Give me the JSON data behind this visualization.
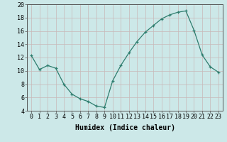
{
  "x": [
    0,
    1,
    2,
    3,
    4,
    5,
    6,
    7,
    8,
    9,
    10,
    11,
    12,
    13,
    14,
    15,
    16,
    17,
    18,
    19,
    20,
    21,
    22,
    23
  ],
  "y": [
    12.3,
    10.2,
    10.8,
    10.4,
    8.0,
    6.5,
    5.8,
    5.4,
    4.7,
    4.5,
    8.5,
    10.8,
    12.7,
    14.4,
    15.8,
    16.8,
    17.8,
    18.4,
    18.8,
    19.0,
    16.1,
    12.4,
    10.6,
    9.8
  ],
  "xlabel": "Humidex (Indice chaleur)",
  "ylim": [
    4,
    20
  ],
  "yticks": [
    4,
    6,
    8,
    10,
    12,
    14,
    16,
    18,
    20
  ],
  "xlim": [
    -0.5,
    23.5
  ],
  "xticks": [
    0,
    1,
    2,
    3,
    4,
    5,
    6,
    7,
    8,
    9,
    10,
    11,
    12,
    13,
    14,
    15,
    16,
    17,
    18,
    19,
    20,
    21,
    22,
    23
  ],
  "line_color": "#2e7d6e",
  "marker": "+",
  "bg_color": "#cce8e8",
  "grid_color": "#c8b8b8",
  "xlabel_fontsize": 7,
  "tick_fontsize": 6
}
